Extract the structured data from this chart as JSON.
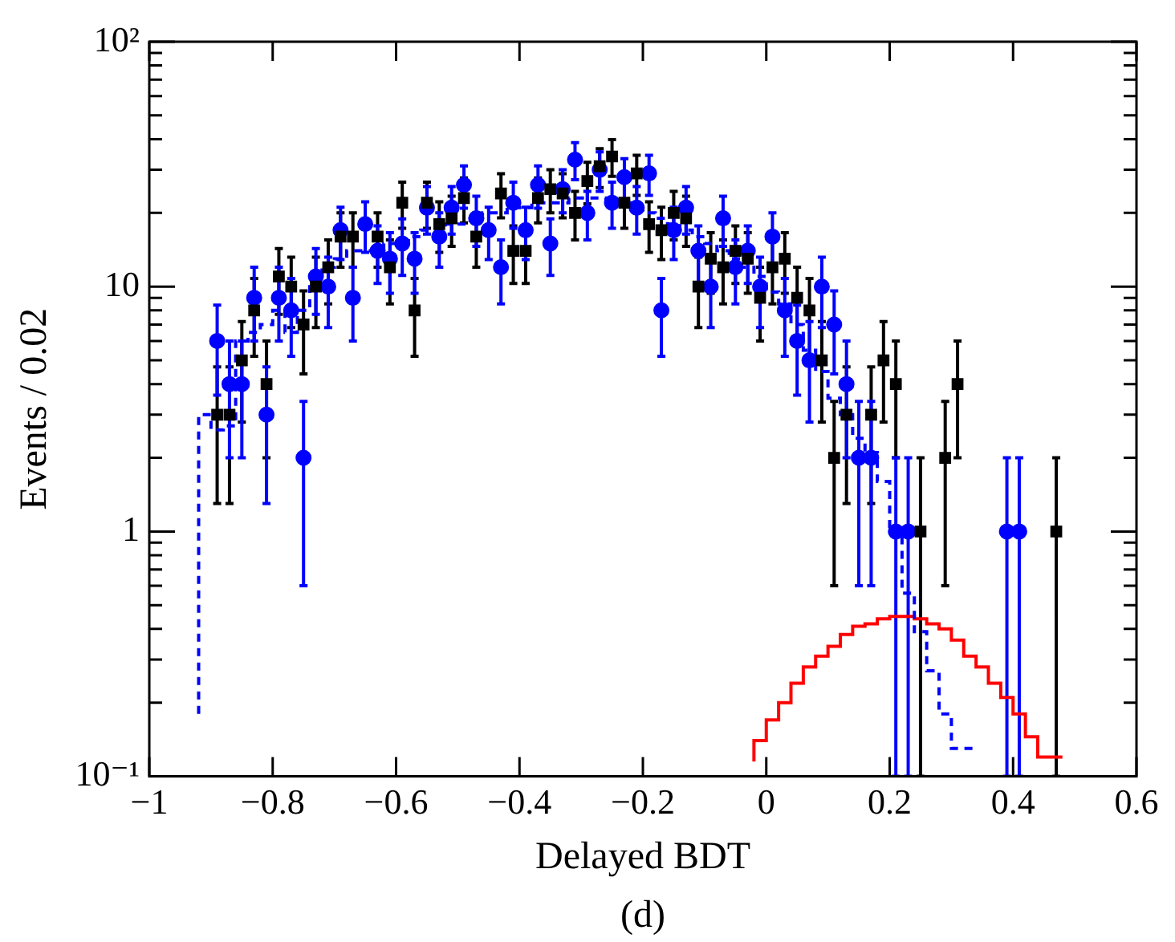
{
  "chart_data": {
    "type": "scatter",
    "xlabel": "Delayed BDT",
    "ylabel": "Events / 0.02",
    "annotations": [
      "(d)"
    ],
    "log": "y",
    "xlim": [
      -1,
      0.6
    ],
    "xticks": [
      {
        "value": -1,
        "label": "−1"
      },
      {
        "value": -0.8,
        "label": "−0.8"
      },
      {
        "value": -0.6,
        "label": "−0.6"
      },
      {
        "value": -0.4,
        "label": "−0.4"
      },
      {
        "value": -0.2,
        "label": "−0.2"
      },
      0,
      0.2,
      0.4,
      0.6
    ],
    "ylim": [
      0.1,
      100
    ],
    "yticks": [
      {
        "value": 0.1,
        "label": "10⁻¹"
      },
      {
        "value": 0.2,
        "label": null
      },
      {
        "value": 0.3,
        "label": null
      },
      {
        "value": 0.4,
        "label": null
      },
      {
        "value": 0.5,
        "label": null
      },
      {
        "value": 0.6,
        "label": null
      },
      {
        "value": 0.7,
        "label": null
      },
      {
        "value": 0.8,
        "label": null
      },
      {
        "value": 0.9,
        "label": null
      },
      1,
      {
        "value": 2,
        "label": null
      },
      {
        "value": 3,
        "label": null
      },
      {
        "value": 4,
        "label": null
      },
      {
        "value": 5,
        "label": null
      },
      {
        "value": 6,
        "label": null
      },
      {
        "value": 7,
        "label": null
      },
      {
        "value": 8,
        "label": null
      },
      {
        "value": 9,
        "label": null
      },
      10,
      {
        "value": 20,
        "label": null
      },
      {
        "value": 30,
        "label": null
      },
      {
        "value": 40,
        "label": null
      },
      {
        "value": 50,
        "label": null
      },
      {
        "value": 60,
        "label": null
      },
      {
        "value": 70,
        "label": null
      },
      {
        "value": 80,
        "label": null
      },
      {
        "value": 90,
        "label": null
      },
      {
        "value": 100,
        "label": "10²"
      }
    ],
    "series": [
      {
        "type": "step",
        "color": "#0000ff",
        "line_style": "dashed",
        "x": [
          -0.92,
          -0.9,
          -0.88,
          -0.86,
          -0.84,
          -0.82,
          -0.8,
          -0.78,
          -0.76,
          -0.74,
          -0.72,
          -0.7,
          -0.68,
          -0.66,
          -0.64,
          -0.62,
          -0.6,
          -0.58,
          -0.56,
          -0.54,
          -0.52,
          -0.5,
          -0.48,
          -0.46,
          -0.44,
          -0.42,
          -0.4,
          -0.38,
          -0.36,
          -0.34,
          -0.32,
          -0.3,
          -0.28,
          -0.26,
          -0.24,
          -0.22,
          -0.2,
          -0.18,
          -0.16,
          -0.14,
          -0.12,
          -0.1,
          -0.08,
          -0.06,
          -0.04,
          -0.02,
          0,
          0.02,
          0.04,
          0.06,
          0.08,
          0.1,
          0.12,
          0.14,
          0.16,
          0.18,
          0.2,
          0.22,
          0.24,
          0.26,
          0.28,
          0.3,
          0.32,
          0.34
        ],
        "values": [
          0.18,
          3,
          2.6,
          2.7,
          6,
          6.5,
          7,
          8,
          6.5,
          8,
          10,
          12,
          13,
          14,
          14,
          14,
          15,
          15,
          16,
          17,
          17,
          18,
          18,
          19,
          20,
          20,
          21,
          21,
          22,
          22,
          22,
          23,
          23,
          23,
          22,
          22,
          21,
          20,
          19,
          18,
          17,
          16,
          15,
          14,
          13,
          12,
          11,
          9.5,
          8.5,
          7,
          5.5,
          4.5,
          3.5,
          3,
          2.4,
          2.1,
          1.6,
          1,
          0.56,
          0.39,
          0.27,
          0.18,
          0.13,
          0.13
        ]
      },
      {
        "type": "step",
        "color": "#ff0000",
        "line_style": "solid",
        "x": [
          -0.02,
          0,
          0.02,
          0.04,
          0.06,
          0.08,
          0.1,
          0.12,
          0.14,
          0.16,
          0.18,
          0.2,
          0.22,
          0.24,
          0.26,
          0.28,
          0.3,
          0.32,
          0.34,
          0.36,
          0.38,
          0.4,
          0.42,
          0.44,
          0.46,
          0.48
        ],
        "values": [
          0.115,
          0.14,
          0.17,
          0.2,
          0.24,
          0.28,
          0.31,
          0.34,
          0.38,
          0.41,
          0.42,
          0.44,
          0.45,
          0.45,
          0.44,
          0.42,
          0.4,
          0.36,
          0.31,
          0.28,
          0.24,
          0.21,
          0.18,
          0.145,
          0.12,
          0.12
        ]
      },
      {
        "color": "#000000",
        "marker": "square",
        "x": [
          -0.89,
          -0.87,
          -0.85,
          -0.83,
          -0.81,
          -0.79,
          -0.77,
          -0.75,
          -0.73,
          -0.71,
          -0.69,
          -0.67,
          -0.63,
          -0.61,
          -0.59,
          -0.57,
          -0.55,
          -0.53,
          -0.51,
          -0.49,
          -0.47,
          -0.43,
          -0.41,
          -0.39,
          -0.37,
          -0.35,
          -0.33,
          -0.31,
          -0.29,
          -0.27,
          -0.25,
          -0.23,
          -0.21,
          -0.19,
          -0.17,
          -0.15,
          -0.13,
          -0.11,
          -0.09,
          -0.07,
          -0.05,
          -0.03,
          -0.01,
          0.01,
          0.03,
          0.05,
          0.07,
          0.09,
          0.11,
          0.13,
          0.17,
          0.19,
          0.21,
          0.25,
          0.29,
          0.31,
          0.47
        ],
        "values": [
          3,
          3,
          5,
          8,
          4,
          11,
          10,
          7,
          10,
          12,
          16,
          16,
          16,
          12,
          22,
          8,
          22,
          18,
          19,
          23,
          16,
          24,
          14,
          14,
          23,
          25,
          24,
          20,
          27,
          31,
          34,
          22,
          29,
          18,
          17,
          20,
          19,
          10,
          13,
          12,
          14,
          13,
          9,
          12,
          13,
          9,
          8,
          5,
          2,
          3,
          3,
          5,
          4,
          1,
          2,
          4,
          1
        ],
        "errors": [
          1.7,
          1.7,
          2.2,
          2.8,
          2,
          3.3,
          3.2,
          2.6,
          3.2,
          3.5,
          4,
          4,
          4,
          3.5,
          4.7,
          2.8,
          4.7,
          4.2,
          4.4,
          4.8,
          4,
          4.9,
          3.7,
          3.7,
          4.8,
          5,
          4.9,
          4.5,
          5.2,
          5.6,
          5.8,
          4.7,
          5.4,
          4.2,
          4.1,
          4.5,
          4.4,
          3.2,
          3.6,
          3.5,
          3.7,
          3.6,
          3,
          3.5,
          3.6,
          3,
          2.8,
          2.2,
          1.4,
          1.7,
          1.7,
          2.2,
          2,
          [
            0.1,
            2
          ],
          1.4,
          2,
          [
            0.1,
            2
          ]
        ]
      },
      {
        "color": "#0000ff",
        "marker": "circle",
        "x": [
          -0.89,
          -0.87,
          -0.85,
          -0.83,
          -0.81,
          -0.79,
          -0.77,
          -0.75,
          -0.73,
          -0.71,
          -0.69,
          -0.67,
          -0.65,
          -0.63,
          -0.61,
          -0.59,
          -0.57,
          -0.55,
          -0.53,
          -0.51,
          -0.49,
          -0.47,
          -0.45,
          -0.43,
          -0.41,
          -0.39,
          -0.37,
          -0.35,
          -0.33,
          -0.31,
          -0.29,
          -0.27,
          -0.25,
          -0.23,
          -0.21,
          -0.19,
          -0.17,
          -0.15,
          -0.13,
          -0.11,
          -0.09,
          -0.07,
          -0.05,
          -0.03,
          -0.01,
          0.01,
          0.03,
          0.05,
          0.07,
          0.09,
          0.11,
          0.13,
          0.15,
          0.17,
          0.21,
          0.23,
          0.39,
          0.41
        ],
        "values": [
          6,
          4,
          4,
          9,
          3,
          9,
          8,
          2,
          11,
          10,
          17,
          9,
          18,
          14,
          13,
          15,
          13,
          21,
          16,
          21,
          26,
          19,
          17,
          12,
          22,
          17,
          26,
          15,
          25,
          33,
          20,
          30,
          22,
          28,
          21,
          29,
          8,
          17,
          21,
          14,
          10,
          19,
          12,
          14,
          10,
          16,
          8,
          6,
          5,
          10,
          7,
          4,
          2,
          2,
          1,
          1,
          1,
          1
        ],
        "errors": [
          2.4,
          2,
          2,
          3,
          1.7,
          3,
          2.8,
          1.4,
          3.3,
          3.2,
          4.1,
          3,
          4.2,
          3.7,
          3.6,
          3.9,
          3.6,
          4.6,
          4,
          4.6,
          5.1,
          4.4,
          4.1,
          3.5,
          4.7,
          4.1,
          5.1,
          3.9,
          5,
          5.7,
          4.5,
          5.5,
          4.7,
          5.3,
          4.6,
          5.4,
          2.8,
          4.1,
          4.6,
          3.7,
          3.2,
          4.4,
          3.5,
          3.7,
          3.2,
          4,
          2.8,
          2.4,
          2.2,
          3.2,
          2.6,
          2,
          1.4,
          1.4,
          [
            0.1,
            2
          ],
          [
            0.1,
            2
          ],
          [
            0.1,
            2
          ],
          [
            0.1,
            2
          ]
        ]
      }
    ]
  }
}
